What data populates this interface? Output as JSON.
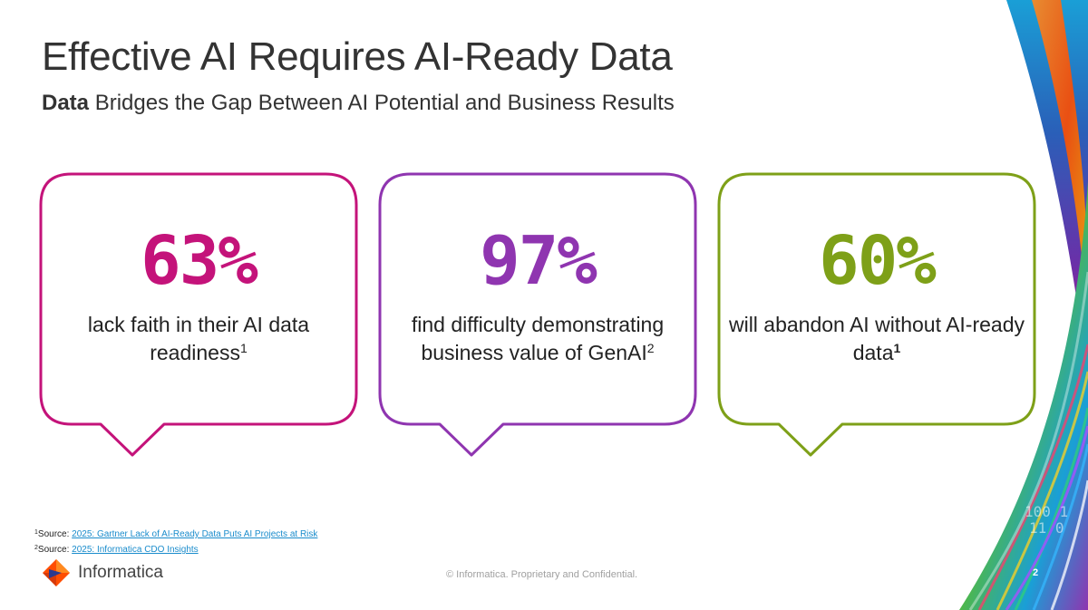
{
  "slide": {
    "title": "Effective AI Requires AI-Ready Data",
    "subtitle_bold": "Data",
    "subtitle_rest": " Bridges the Gap Between AI Potential and Business Results"
  },
  "stats": [
    {
      "value": "63%",
      "text": "lack faith in their AI data readiness",
      "sup": "1",
      "color": "#c4137a"
    },
    {
      "value": "97%",
      "text": "find difficulty demonstrating business value of GenAI",
      "sup": "2",
      "color": "#8f35b0"
    },
    {
      "value": "60%",
      "text": "will abandon AI without AI-ready data",
      "sup": "1",
      "color": "#7ea018"
    }
  ],
  "footnotes": [
    {
      "sup": "1",
      "label": "Source: ",
      "link": "2025: Gartner Lack of AI-Ready Data Puts AI Projects at Risk"
    },
    {
      "sup": "2",
      "label": "Source: ",
      "link": "2025: Informatica CDO Insights"
    }
  ],
  "footer": {
    "logo_text": "Informatica",
    "copyright": "© Informatica. Proprietary and Confidential.",
    "page_number": "2",
    "logo_icon": "informatica-logo-icon"
  },
  "decor": {
    "binary_text_1": "100 1",
    "binary_text_2": "11 0"
  }
}
